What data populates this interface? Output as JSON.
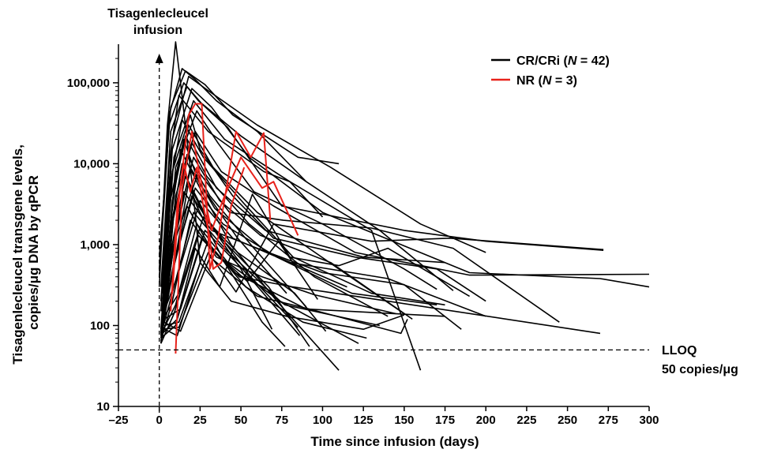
{
  "chart_data": {
    "type": "line",
    "xlabel": "Time since infusion (days)",
    "ylabel_lines": [
      "Tisagenlecleucel transgene levels,",
      "copies/μg DNA by qPCR"
    ],
    "x_scale": "linear",
    "y_scale": "log",
    "xlim": [
      -25,
      300
    ],
    "ylim": [
      10,
      300000
    ],
    "x_ticks": [
      -25,
      0,
      25,
      50,
      75,
      100,
      125,
      150,
      175,
      200,
      225,
      250,
      275,
      300
    ],
    "x_tick_labels": [
      "–25",
      "0",
      "25",
      "50",
      "75",
      "100",
      "125",
      "150",
      "175",
      "200",
      "225",
      "250",
      "275",
      "300"
    ],
    "y_ticks": [
      10,
      100,
      1000,
      10000,
      100000
    ],
    "y_tick_labels": [
      "10",
      "100",
      "1,000",
      "10,000",
      "100,000"
    ],
    "grid": false,
    "legend_position": "top-right",
    "annotations": {
      "infusion_line1": "Tisagenlecleucel",
      "infusion_line2": "infusion",
      "infusion_day": 0,
      "lloq_line1": "LLOQ",
      "lloq_line2": "50 copies/μg",
      "lloq_value": 50
    },
    "series_groups": [
      {
        "label": "CR/CRi (",
        "n_label": "N",
        "n_value": " = 42)",
        "color": "#000000"
      },
      {
        "label": "NR (",
        "n_label": "N",
        "n_value": " = 3)",
        "color": "#e8221b"
      }
    ],
    "series": [
      {
        "group": 0,
        "x": [
          0,
          5,
          10,
          13,
          20,
          25
        ],
        "y": [
          300,
          30000,
          320000,
          100000,
          6000,
          600
        ]
      },
      {
        "group": 0,
        "x": [
          0,
          6,
          14,
          22,
          35,
          60,
          90
        ],
        "y": [
          500,
          40000,
          150000,
          110000,
          60000,
          25000,
          6000
        ]
      },
      {
        "group": 0,
        "x": [
          0,
          7,
          16,
          28,
          45,
          85,
          110
        ],
        "y": [
          700,
          50000,
          140000,
          95000,
          40000,
          12000,
          10000
        ]
      },
      {
        "group": 0,
        "x": [
          1,
          8,
          18,
          30,
          60,
          105,
          160,
          200
        ],
        "y": [
          200,
          20000,
          120000,
          80000,
          30000,
          9000,
          1800,
          800
        ]
      },
      {
        "group": 0,
        "x": [
          0,
          6,
          15,
          24,
          50,
          90,
          135,
          180
        ],
        "y": [
          400,
          30000,
          100000,
          60000,
          22000,
          6000,
          1500,
          270
        ]
      },
      {
        "group": 0,
        "x": [
          1,
          7,
          17,
          26,
          42,
          75,
          150,
          200,
          272
        ],
        "y": [
          300,
          25000,
          90000,
          55000,
          28000,
          3000,
          1500,
          1100,
          850
        ]
      },
      {
        "group": 0,
        "x": [
          2,
          8,
          20,
          32,
          55,
          100,
          190,
          270,
          300
        ],
        "y": [
          250,
          15000,
          85000,
          50000,
          12000,
          2500,
          450,
          380,
          300
        ]
      },
      {
        "group": 0,
        "x": [
          1,
          6,
          12,
          30,
          64,
          80,
          100
        ],
        "y": [
          150,
          10000,
          70000,
          25000,
          8000,
          6000,
          2200
        ]
      },
      {
        "group": 0,
        "x": [
          2,
          9,
          21,
          40,
          80,
          130,
          160
        ],
        "y": [
          180,
          12000,
          60000,
          20000,
          6000,
          1500,
          28
        ]
      },
      {
        "group": 0,
        "x": [
          3,
          10,
          23,
          36,
          58,
          100,
          150,
          170
        ],
        "y": [
          200,
          9000,
          45000,
          18000,
          4500,
          1800,
          500,
          280
        ]
      },
      {
        "group": 0,
        "x": [
          2,
          8,
          19,
          25,
          45,
          70,
          120,
          170,
          200
        ],
        "y": [
          120,
          8000,
          40000,
          15000,
          4000,
          1200,
          700,
          500,
          200
        ]
      },
      {
        "group": 0,
        "x": [
          1,
          7,
          14,
          27,
          52,
          82,
          130,
          175
        ],
        "y": [
          90,
          6000,
          35000,
          12000,
          3200,
          700,
          250,
          180
        ]
      },
      {
        "group": 0,
        "x": [
          2,
          9,
          18,
          33,
          60,
          110,
          150
        ],
        "y": [
          100,
          5000,
          30000,
          9000,
          2500,
          500,
          140
        ]
      },
      {
        "group": 0,
        "x": [
          3,
          10,
          22,
          38,
          70,
          120,
          190,
          300
        ],
        "y": [
          150,
          4000,
          25000,
          8000,
          3000,
          800,
          420,
          430
        ]
      },
      {
        "group": 0,
        "x": [
          1,
          8,
          16,
          29,
          55,
          95,
          140
        ],
        "y": [
          80,
          3500,
          22000,
          7000,
          1800,
          400,
          130
        ]
      },
      {
        "group": 0,
        "x": [
          2,
          6,
          15,
          24,
          48,
          78
        ],
        "y": [
          70,
          3000,
          20000,
          6000,
          1200,
          250
        ]
      },
      {
        "group": 0,
        "x": [
          3,
          9,
          20,
          35,
          65,
          125,
          175
        ],
        "y": [
          110,
          2500,
          18000,
          5000,
          1500,
          700,
          600
        ]
      },
      {
        "group": 0,
        "x": [
          1,
          7,
          13,
          26,
          44,
          72,
          110
        ],
        "y": [
          60,
          2000,
          15000,
          4500,
          1000,
          200,
          28
        ]
      },
      {
        "group": 0,
        "x": [
          2,
          8,
          17,
          31,
          58,
          90
        ],
        "y": [
          90,
          1800,
          13000,
          4000,
          900,
          170
        ]
      },
      {
        "group": 0,
        "x": [
          3,
          10,
          21,
          37,
          62,
          105,
          155
        ],
        "y": [
          120,
          1500,
          12000,
          3500,
          1300,
          600,
          120
        ]
      },
      {
        "group": 0,
        "x": [
          1,
          6,
          14,
          23,
          40,
          63,
          77
        ],
        "y": [
          75,
          1200,
          10000,
          3000,
          600,
          110,
          55
        ]
      },
      {
        "group": 0,
        "x": [
          2,
          9,
          19,
          34,
          66,
          115
        ],
        "y": [
          100,
          1000,
          9000,
          2800,
          800,
          300
        ]
      },
      {
        "group": 0,
        "x": [
          3,
          8,
          24,
          43,
          76,
          130,
          180,
          245
        ],
        "y": [
          130,
          900,
          8000,
          2500,
          2000,
          1600,
          900,
          110
        ]
      },
      {
        "group": 0,
        "x": [
          1,
          7,
          16,
          28,
          50,
          69
        ],
        "y": [
          85,
          800,
          7000,
          2200,
          500,
          90
        ]
      },
      {
        "group": 0,
        "x": [
          2,
          10,
          18,
          30,
          56,
          85
        ],
        "y": [
          95,
          700,
          6000,
          2000,
          400,
          95
        ]
      },
      {
        "group": 0,
        "x": [
          3,
          9,
          22,
          39,
          72,
          118,
          170
        ],
        "y": [
          140,
          600,
          5000,
          1800,
          700,
          250,
          180
        ]
      },
      {
        "group": 0,
        "x": [
          1,
          6,
          15,
          32,
          60,
          100,
          150,
          185
        ],
        "y": [
          70,
          500,
          4500,
          1500,
          900,
          450,
          320,
          90
        ]
      },
      {
        "group": 0,
        "x": [
          2,
          8,
          20,
          36,
          67,
          92
        ],
        "y": [
          110,
          450,
          4000,
          1300,
          300,
          55
        ]
      },
      {
        "group": 0,
        "x": [
          3,
          11,
          25,
          45,
          80,
          140,
          200
        ],
        "y": [
          150,
          400,
          3500,
          1200,
          600,
          380,
          130
        ]
      },
      {
        "group": 0,
        "x": [
          1,
          7,
          17,
          29,
          53,
          88,
          127
        ],
        "y": [
          80,
          350,
          3000,
          1100,
          300,
          110,
          70
        ]
      },
      {
        "group": 0,
        "x": [
          2,
          9,
          21,
          40,
          74,
          122
        ],
        "y": [
          90,
          300,
          2500,
          900,
          200,
          60
        ]
      },
      {
        "group": 0,
        "x": [
          3,
          12,
          27,
          48,
          83,
          102
        ],
        "y": [
          130,
          250,
          2200,
          800,
          250,
          85
        ]
      },
      {
        "group": 0,
        "x": [
          1,
          8,
          19,
          35,
          63,
          95,
          145
        ],
        "y": [
          65,
          200,
          2000,
          700,
          400,
          240,
          140
        ]
      },
      {
        "group": 0,
        "x": [
          2,
          10,
          23,
          42,
          77,
          135
        ],
        "y": [
          85,
          180,
          1800,
          600,
          180,
          100
        ]
      },
      {
        "group": 0,
        "x": [
          3,
          13,
          28,
          51,
          86
        ],
        "y": [
          120,
          160,
          1500,
          500,
          75
        ]
      },
      {
        "group": 0,
        "x": [
          1,
          9,
          24,
          46,
          90,
          175
        ],
        "y": [
          60,
          140,
          1300,
          450,
          160,
          130
        ]
      },
      {
        "group": 0,
        "x": [
          2,
          11,
          26,
          49,
          82,
          140,
          270
        ],
        "y": [
          80,
          120,
          1200,
          400,
          300,
          200,
          80
        ]
      },
      {
        "group": 0,
        "x": [
          3,
          12,
          29,
          54,
          73,
          97
        ],
        "y": [
          100,
          110,
          1000,
          350,
          1100,
          210
        ]
      },
      {
        "group": 0,
        "x": [
          1,
          10,
          22,
          37,
          57,
          80,
          110,
          140,
          190
        ],
        "y": [
          70,
          100,
          900,
          300,
          4200,
          700,
          550,
          900,
          230
        ]
      },
      {
        "group": 0,
        "x": [
          2,
          12,
          30,
          47,
          70,
          130,
          178,
          272
        ],
        "y": [
          90,
          95,
          800,
          260,
          1800,
          1100,
          1200,
          870
        ]
      },
      {
        "group": 0,
        "x": [
          3,
          13,
          31,
          60,
          92,
          148,
          152
        ],
        "y": [
          110,
          85,
          700,
          230,
          160,
          80,
          120
        ]
      },
      {
        "group": 0,
        "x": [
          1,
          11,
          25,
          44,
          78,
          125,
          150
        ],
        "y": [
          95,
          75,
          600,
          200,
          130,
          90,
          135
        ]
      },
      {
        "group": 1,
        "x": [
          10,
          14,
          20,
          24,
          28,
          32,
          40,
          50,
          63,
          70,
          85
        ],
        "y": [
          45,
          5000,
          25000,
          9000,
          3500,
          1500,
          4000,
          12000,
          5000,
          6000,
          1300
        ]
      },
      {
        "group": 1,
        "x": [
          8,
          12,
          18,
          22,
          26,
          31,
          36,
          47,
          56,
          64,
          68
        ],
        "y": [
          250,
          3500,
          40000,
          55000,
          55000,
          500,
          1200,
          25000,
          12000,
          24000,
          2000
        ]
      },
      {
        "group": 1,
        "x": [
          7,
          11,
          15,
          19,
          23,
          27,
          31,
          33,
          38,
          44,
          52
        ],
        "y": [
          150,
          3000,
          10000,
          4500,
          9000,
          3000,
          1200,
          500,
          600,
          3000,
          9000
        ]
      }
    ]
  }
}
